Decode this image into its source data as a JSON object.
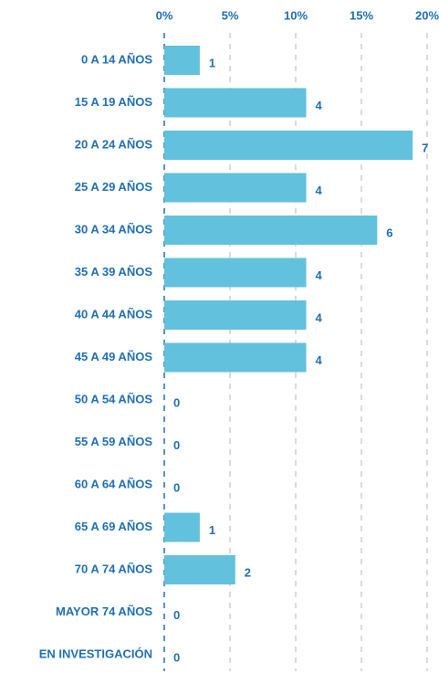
{
  "chart_data": {
    "type": "bar",
    "orientation": "horizontal",
    "categories": [
      "0 A 14 AÑOS",
      "15 A 19 AÑOS",
      "20 A 24 AÑOS",
      "25 A 29 AÑOS",
      "30 A 34 AÑOS",
      "35 A 39 AÑOS",
      "40 A 44 AÑOS",
      "45 A 49 AÑOS",
      "50 A 54 AÑOS",
      "55 A 59 AÑOS",
      "60 A 64 AÑOS",
      "65 A 69 AÑOS",
      "70 A 74 AÑOS",
      "MAYOR 74 AÑOS",
      "EN INVESTIGACIÓN"
    ],
    "values": [
      2.7,
      10.8,
      18.9,
      10.8,
      16.2,
      10.8,
      10.8,
      10.8,
      0,
      0,
      0,
      2.7,
      5.4,
      0,
      0
    ],
    "value_labels": [
      "1",
      "4",
      "7",
      "4",
      "6",
      "4",
      "4",
      "4",
      "0",
      "0",
      "0",
      "1",
      "2",
      "0",
      "0"
    ],
    "color": "#62c1dc",
    "xlim": [
      0,
      20
    ],
    "xticks": [
      {
        "value": 0,
        "label": "0%"
      },
      {
        "value": 5,
        "label": "5%"
      },
      {
        "value": 10,
        "label": "10%"
      },
      {
        "value": 15,
        "label": "15%"
      },
      {
        "value": 20,
        "label": "20%"
      }
    ],
    "grid": true
  }
}
